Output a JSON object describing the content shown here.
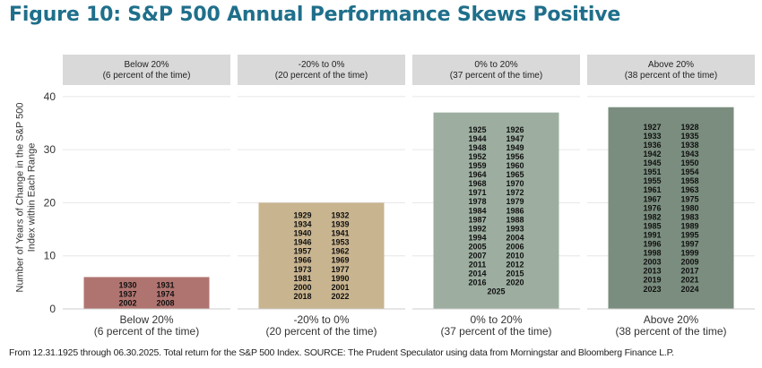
{
  "title": "Figure 10: S&P 500 Annual Performance Skews Positive",
  "footer": "From 12.31.1925 through 06.30.2025. Total return for the S&P 500 Index. SOURCE: The Prudent Speculator using data from Morningstar and Bloomberg Finance L.P.",
  "chart_data": {
    "type": "bar",
    "ylabel": "Number of Years of Change in the S&P 500 Index within Each Range",
    "ylim": [
      0,
      42
    ],
    "yticks": [
      0,
      10,
      20,
      30,
      40
    ],
    "grid": true,
    "panels": [
      {
        "strip_line1": "Below 20%",
        "strip_line2": "(6 percent of the time)",
        "category": "Below 20%",
        "category_sub": "(6 percent of the time)",
        "value": 6,
        "color": "#b07470",
        "years": [
          "1930",
          "1931",
          "1937",
          "1974",
          "2002",
          "2008"
        ]
      },
      {
        "strip_line1": "-20% to 0%",
        "strip_line2": "(20 percent of the time)",
        "category": "-20% to 0%",
        "category_sub": "(20 percent of the time)",
        "value": 20,
        "color": "#c8b48f",
        "years": [
          "1929",
          "1932",
          "1934",
          "1939",
          "1940",
          "1941",
          "1946",
          "1953",
          "1957",
          "1962",
          "1966",
          "1969",
          "1973",
          "1977",
          "1981",
          "1990",
          "2000",
          "2001",
          "2018",
          "2022"
        ]
      },
      {
        "strip_line1": "0% to 20%",
        "strip_line2": "(37 percent of the time)",
        "category": "0% to 20%",
        "category_sub": "(37 percent of the time)",
        "value": 37,
        "color": "#9daea0",
        "years": [
          "1925",
          "1926",
          "1944",
          "1947",
          "1948",
          "1949",
          "1952",
          "1956",
          "1959",
          "1960",
          "1964",
          "1965",
          "1968",
          "1970",
          "1971",
          "1972",
          "1978",
          "1979",
          "1984",
          "1986",
          "1987",
          "1988",
          "1992",
          "1993",
          "1994",
          "2004",
          "2005",
          "2006",
          "2007",
          "2010",
          "2011",
          "2012",
          "2014",
          "2015",
          "2016",
          "2020",
          "2025"
        ]
      },
      {
        "strip_line1": "Above 20%",
        "strip_line2": "(38 percent of the time)",
        "category": "Above 20%",
        "category_sub": "(38 percent of the time)",
        "value": 38,
        "color": "#7a8d7e",
        "years": [
          "1927",
          "1928",
          "1933",
          "1935",
          "1936",
          "1938",
          "1942",
          "1943",
          "1945",
          "1950",
          "1951",
          "1954",
          "1955",
          "1958",
          "1961",
          "1963",
          "1967",
          "1975",
          "1976",
          "1980",
          "1982",
          "1983",
          "1985",
          "1989",
          "1991",
          "1995",
          "1996",
          "1997",
          "1998",
          "1999",
          "2003",
          "2009",
          "2013",
          "2017",
          "2019",
          "2021",
          "2023",
          "2024"
        ]
      }
    ]
  }
}
